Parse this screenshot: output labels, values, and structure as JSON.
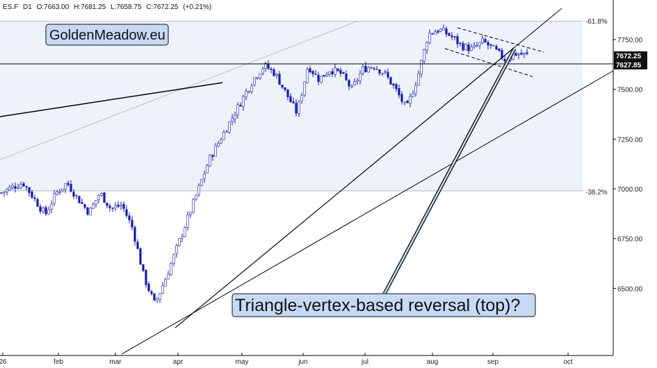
{
  "header": {
    "symbol": "ES.F",
    "interval": "D1",
    "open": "O:7663.00",
    "high": "H:7681.25",
    "low": "L:7658.75",
    "close": "C:7672.25",
    "change": "(+0.21%)"
  },
  "brand": "GoldenMeadow.eu",
  "annotation": "Triangle-vertex-based reversal (top)?",
  "price_tags": {
    "last": "7672.25",
    "level": "7627.85"
  },
  "fib_labels": {
    "upper": "-61.8%",
    "lower": "-38.2%"
  },
  "colors": {
    "candle_up": "#ffffff",
    "candle_down": "#1a1aa8",
    "candle_outline": "#1a1aa8",
    "fib_zone": "#eef2fb",
    "tag_bg": "#111111",
    "label_box": "#c6d9f5"
  },
  "chart_data": {
    "type": "candlestick",
    "y_ticks": [
      "7750.00",
      "7500.00",
      "7250.00",
      "7000.00",
      "6750.00",
      "6500.00"
    ],
    "y_tick_values": [
      7750,
      7500,
      7250,
      7000,
      6750,
      6500
    ],
    "ylim": [
      6270,
      7880
    ],
    "x_tick_labels": [
      "26",
      "feb",
      "mar",
      "apr",
      "may",
      "jun",
      "jul",
      "aug",
      "sep",
      "oct"
    ],
    "fib_levels": [
      {
        "label": "-61.8%",
        "value": 7842
      },
      {
        "label": "-38.2%",
        "value": 6990
      }
    ],
    "horizontal_level": 7627.85,
    "last_price": 7672.25,
    "close_path": [
      6980,
      7010,
      7030,
      6950,
      6870,
      6980,
      7030,
      6950,
      6880,
      6980,
      6900,
      6920,
      6800,
      6560,
      6420,
      6550,
      6700,
      6850,
      7000,
      7150,
      7250,
      7350,
      7450,
      7550,
      7620,
      7580,
      7480,
      7380,
      7620,
      7550,
      7600,
      7580,
      7500,
      7600,
      7620,
      7580,
      7500,
      7400,
      7560,
      7780,
      7800,
      7770,
      7720,
      7700,
      7740,
      7700,
      7650,
      7680,
      7672
    ]
  }
}
